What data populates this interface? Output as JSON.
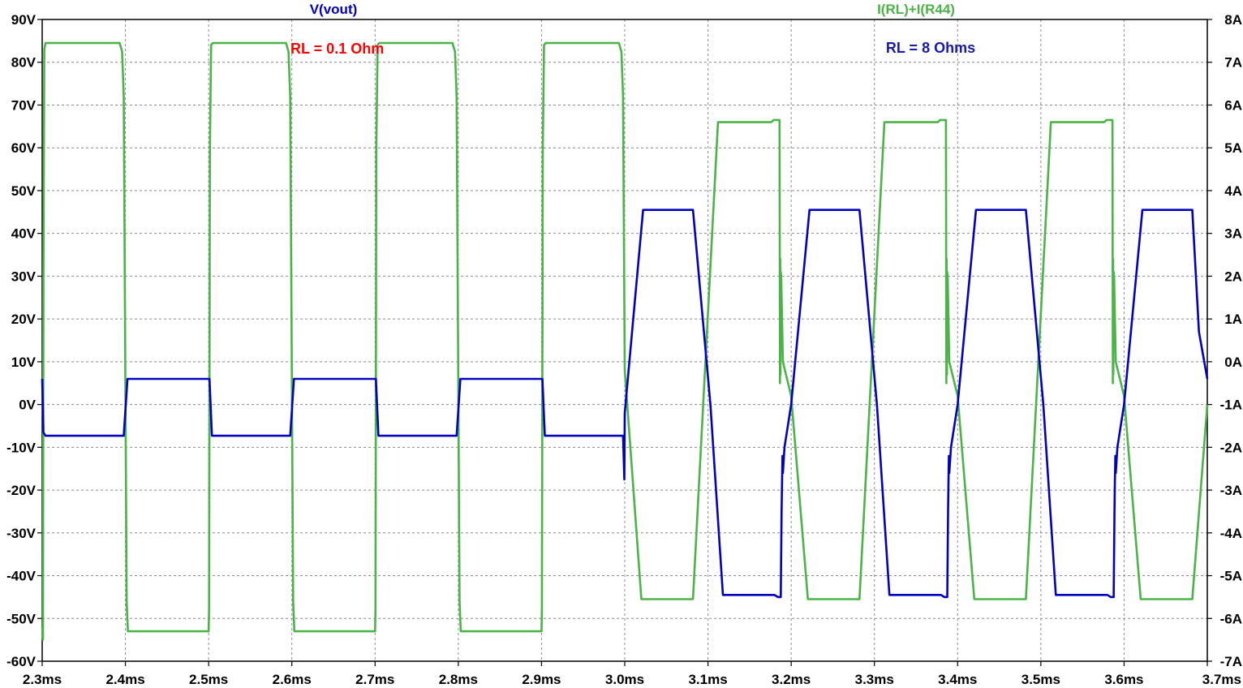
{
  "chart_data": {
    "type": "line",
    "x_axis": {
      "unit": "ms",
      "range": [
        2.3,
        3.7
      ],
      "ticks": [
        2.3,
        2.4,
        2.5,
        2.6,
        2.7,
        2.8,
        2.9,
        3.0,
        3.1,
        3.2,
        3.3,
        3.4,
        3.5,
        3.6,
        3.7
      ],
      "tick_labels": [
        "2.3ms",
        "2.4ms",
        "2.5ms",
        "2.6ms",
        "2.7ms",
        "2.8ms",
        "2.9ms",
        "3.0ms",
        "3.1ms",
        "3.2ms",
        "3.3ms",
        "3.4ms",
        "3.5ms",
        "3.6ms",
        "3.7ms"
      ]
    },
    "y_left": {
      "unit": "V",
      "range": [
        -60,
        90
      ],
      "ticks": [
        90,
        80,
        70,
        60,
        50,
        40,
        30,
        20,
        10,
        0,
        -10,
        -20,
        -30,
        -40,
        -50,
        -60
      ],
      "tick_labels": [
        "90V",
        "80V",
        "70V",
        "60V",
        "50V",
        "40V",
        "30V",
        "20V",
        "10V",
        "0V",
        "-10V",
        "-20V",
        "-30V",
        "-40V",
        "-50V",
        "-60V"
      ]
    },
    "y_right": {
      "unit": "A",
      "range": [
        -7,
        8
      ],
      "ticks": [
        8,
        7,
        6,
        5,
        4,
        3,
        2,
        1,
        0,
        -1,
        -2,
        -3,
        -4,
        -5,
        -6,
        -7
      ],
      "tick_labels": [
        "8A",
        "7A",
        "6A",
        "5A",
        "4A",
        "3A",
        "2A",
        "1A",
        "0A",
        "-1A",
        "-2A",
        "-3A",
        "-4A",
        "-5A",
        "-6A",
        "-7A"
      ]
    },
    "grid": true,
    "series": [
      {
        "name": "V(vout)",
        "axis": "left",
        "color": "#0000c0",
        "points": [
          [
            2.3,
            6
          ],
          [
            2.3015,
            -6.5
          ],
          [
            2.304,
            -7.3
          ],
          [
            2.398,
            -7.3
          ],
          [
            2.4025,
            6.0
          ],
          [
            2.501,
            6.0
          ],
          [
            2.504,
            -7.3
          ],
          [
            2.598,
            -7.3
          ],
          [
            2.6025,
            6.0
          ],
          [
            2.701,
            6.0
          ],
          [
            2.704,
            -7.3
          ],
          [
            2.798,
            -7.3
          ],
          [
            2.8025,
            6.0
          ],
          [
            2.901,
            6.0
          ],
          [
            2.904,
            -7.3
          ],
          [
            2.998,
            -7.3
          ],
          [
            2.9995,
            -17.5
          ],
          [
            3.0,
            -2.0
          ],
          [
            3.022,
            45.5
          ],
          [
            3.082,
            45.5
          ],
          [
            3.103,
            0.0
          ],
          [
            3.118,
            -44.5
          ],
          [
            3.18,
            -44.5
          ],
          [
            3.184,
            -45.0
          ],
          [
            3.1875,
            -45.0
          ],
          [
            3.1885,
            -25.0
          ],
          [
            3.189,
            -18.0
          ],
          [
            3.1895,
            -12.0
          ],
          [
            3.19,
            -16.0
          ],
          [
            3.192,
            -10.0
          ],
          [
            3.2,
            0.0
          ],
          [
            3.222,
            45.5
          ],
          [
            3.282,
            45.5
          ],
          [
            3.303,
            0.0
          ],
          [
            3.318,
            -44.5
          ],
          [
            3.38,
            -44.5
          ],
          [
            3.384,
            -45.0
          ],
          [
            3.3875,
            -45.0
          ],
          [
            3.3885,
            -25.0
          ],
          [
            3.389,
            -18.0
          ],
          [
            3.3895,
            -12.0
          ],
          [
            3.39,
            -16.0
          ],
          [
            3.392,
            -10.0
          ],
          [
            3.4,
            0.0
          ],
          [
            3.422,
            45.5
          ],
          [
            3.482,
            45.5
          ],
          [
            3.503,
            0.0
          ],
          [
            3.518,
            -44.5
          ],
          [
            3.58,
            -44.5
          ],
          [
            3.584,
            -45.0
          ],
          [
            3.5875,
            -45.0
          ],
          [
            3.5885,
            -25.0
          ],
          [
            3.589,
            -18.0
          ],
          [
            3.5895,
            -12.0
          ],
          [
            3.59,
            -16.0
          ],
          [
            3.592,
            -10.0
          ],
          [
            3.6,
            0.0
          ],
          [
            3.622,
            45.5
          ],
          [
            3.682,
            45.5
          ],
          [
            3.69,
            17.0
          ],
          [
            3.7,
            6.0
          ]
        ]
      },
      {
        "name": "I(RL)+I(R44)",
        "axis": "right",
        "color": "#4cb348",
        "points": [
          [
            2.3,
            -6.2
          ],
          [
            2.301,
            -6.5
          ],
          [
            2.3015,
            2.0
          ],
          [
            2.3025,
            7.3
          ],
          [
            2.304,
            7.45
          ],
          [
            2.393,
            7.45
          ],
          [
            2.396,
            7.25
          ],
          [
            2.398,
            6.2
          ],
          [
            2.4015,
            -5.6
          ],
          [
            2.403,
            -6.3
          ],
          [
            2.5,
            -6.3
          ],
          [
            2.5005,
            -5.8
          ],
          [
            2.5015,
            5.0
          ],
          [
            2.503,
            7.4
          ],
          [
            2.505,
            7.45
          ],
          [
            2.593,
            7.45
          ],
          [
            2.596,
            7.25
          ],
          [
            2.598,
            6.2
          ],
          [
            2.6015,
            -5.6
          ],
          [
            2.603,
            -6.3
          ],
          [
            2.7,
            -6.3
          ],
          [
            2.7005,
            -5.8
          ],
          [
            2.7015,
            5.0
          ],
          [
            2.703,
            7.4
          ],
          [
            2.705,
            7.45
          ],
          [
            2.793,
            7.45
          ],
          [
            2.796,
            7.25
          ],
          [
            2.798,
            6.2
          ],
          [
            2.8015,
            -5.6
          ],
          [
            2.803,
            -6.3
          ],
          [
            2.9,
            -6.3
          ],
          [
            2.9005,
            -5.8
          ],
          [
            2.9015,
            5.0
          ],
          [
            2.903,
            7.4
          ],
          [
            2.905,
            7.45
          ],
          [
            2.993,
            7.45
          ],
          [
            2.996,
            7.25
          ],
          [
            2.998,
            6.2
          ],
          [
            3.0,
            -0.2
          ],
          [
            3.02,
            -5.55
          ],
          [
            3.082,
            -5.55
          ],
          [
            3.112,
            5.6
          ],
          [
            3.176,
            5.6
          ],
          [
            3.179,
            5.65
          ],
          [
            3.186,
            5.65
          ],
          [
            3.1865,
            -0.5
          ],
          [
            3.1868,
            2.4
          ],
          [
            3.1871,
            -0.3
          ],
          [
            3.1874,
            2.1
          ],
          [
            3.188,
            2.0
          ],
          [
            3.19,
            0.0
          ],
          [
            3.2,
            -0.8
          ],
          [
            3.22,
            -5.55
          ],
          [
            3.282,
            -5.55
          ],
          [
            3.312,
            5.6
          ],
          [
            3.376,
            5.6
          ],
          [
            3.379,
            5.65
          ],
          [
            3.386,
            5.65
          ],
          [
            3.3865,
            -0.5
          ],
          [
            3.3868,
            2.4
          ],
          [
            3.3871,
            -0.3
          ],
          [
            3.3874,
            2.1
          ],
          [
            3.388,
            2.0
          ],
          [
            3.39,
            0.0
          ],
          [
            3.4,
            -0.8
          ],
          [
            3.42,
            -5.55
          ],
          [
            3.482,
            -5.55
          ],
          [
            3.512,
            5.6
          ],
          [
            3.576,
            5.6
          ],
          [
            3.579,
            5.65
          ],
          [
            3.586,
            5.65
          ],
          [
            3.5865,
            -0.5
          ],
          [
            3.5868,
            2.4
          ],
          [
            3.5871,
            -0.3
          ],
          [
            3.5874,
            2.1
          ],
          [
            3.588,
            2.0
          ],
          [
            3.59,
            0.0
          ],
          [
            3.6,
            -0.8
          ],
          [
            3.62,
            -5.55
          ],
          [
            3.682,
            -5.55
          ],
          [
            3.7,
            -1.0
          ]
        ]
      }
    ],
    "annotations": [
      {
        "text": "RL = 0.1 Ohm",
        "color": "#ff0000",
        "x": 2.598,
        "y_left": 82
      },
      {
        "text": "RL = 8 Ohms",
        "color": "#1a1aa8",
        "x": 3.3,
        "y_left": 82
      }
    ]
  }
}
